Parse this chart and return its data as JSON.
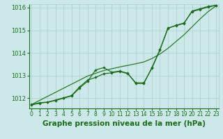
{
  "title": "Graphe pression niveau de la mer (hPa)",
  "xlabel_hours": [
    0,
    1,
    2,
    3,
    4,
    5,
    6,
    7,
    8,
    9,
    10,
    11,
    12,
    13,
    14,
    15,
    16,
    17,
    18,
    19,
    20,
    21,
    22,
    23
  ],
  "pressure_main": [
    1011.7,
    1011.78,
    1011.82,
    1011.9,
    1012.0,
    1012.1,
    1012.45,
    1012.75,
    1013.25,
    1013.35,
    1013.15,
    1013.2,
    1013.1,
    1012.65,
    1012.65,
    1013.35,
    1014.15,
    1015.1,
    1015.2,
    1015.3,
    1015.85,
    1015.95,
    1016.05,
    1016.1
  ],
  "pressure_line2": [
    1011.72,
    1011.8,
    1011.83,
    1011.92,
    1012.02,
    1012.12,
    1012.5,
    1012.8,
    1012.92,
    1013.08,
    1013.12,
    1013.18,
    1013.08,
    1012.68,
    1012.68,
    1013.32,
    1014.12,
    1015.08,
    1015.22,
    1015.32,
    1015.82,
    1015.92,
    1016.02,
    1016.1
  ],
  "pressure_trend": [
    1011.72,
    1011.9,
    1012.08,
    1012.26,
    1012.44,
    1012.62,
    1012.8,
    1012.98,
    1013.1,
    1013.22,
    1013.3,
    1013.38,
    1013.45,
    1013.52,
    1013.6,
    1013.75,
    1013.95,
    1014.2,
    1014.5,
    1014.8,
    1015.15,
    1015.5,
    1015.82,
    1016.08
  ],
  "ylim": [
    1011.55,
    1016.15
  ],
  "yticks": [
    1012,
    1013,
    1014,
    1015,
    1016
  ],
  "bg_color": "#cce8e8",
  "grid_color": "#aacece",
  "line_color": "#1a6b1a",
  "trend_color": "#2a7a2a",
  "title_color": "#1a6b1a",
  "tick_color": "#1a6b1a",
  "title_fontsize": 7.5,
  "tick_fontsize": 6.0,
  "figwidth": 3.2,
  "figheight": 2.0,
  "dpi": 100
}
